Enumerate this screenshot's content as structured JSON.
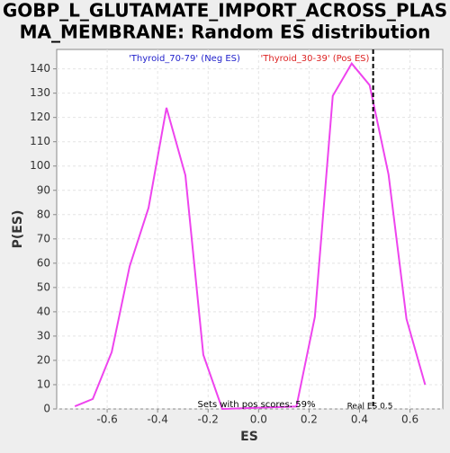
{
  "chart_data": {
    "type": "line",
    "title": [
      "GOBP_L_GLUTAMATE_IMPORT_ACROSS_PLAS",
      "MA_MEMBRANE: Random ES distribution"
    ],
    "xlabel": "ES",
    "ylabel": "P(ES)",
    "x": [
      -0.728,
      -0.657,
      -0.582,
      -0.511,
      -0.436,
      -0.365,
      -0.29,
      -0.219,
      -0.144,
      0.15,
      0.223,
      0.294,
      0.369,
      0.44,
      0.515,
      0.586,
      0.66
    ],
    "series": [
      {
        "name": "'Thyroid_70-79' (Neg ES)",
        "name_color": "#2222cc",
        "color": "#ee44ee",
        "values": [
          1.1,
          4.1,
          23.4,
          58.7,
          82.8,
          124,
          96.2,
          22.3,
          0,
          1,
          37.9,
          128.9,
          142.2,
          133.3,
          96.5,
          37.1,
          10
        ]
      }
    ],
    "legend2": {
      "name": "'Thyroid_30-39' (Pos ES)",
      "color": "#dd2222"
    },
    "xlim": [
      -0.8,
      0.73
    ],
    "ylim": [
      0,
      148
    ],
    "xticks": [
      -0.6,
      -0.4,
      -0.2,
      {
        "value": 0,
        "label": "0.0"
      },
      0.2,
      0.4,
      0.6
    ],
    "yticks": [
      0,
      10,
      20,
      30,
      40,
      50,
      60,
      70,
      80,
      90,
      100,
      110,
      120,
      130,
      140
    ],
    "grid": true,
    "real_es": 0.454,
    "annotations": [
      "Sets with pos scores: 59%",
      "Real ES 0.5"
    ]
  }
}
